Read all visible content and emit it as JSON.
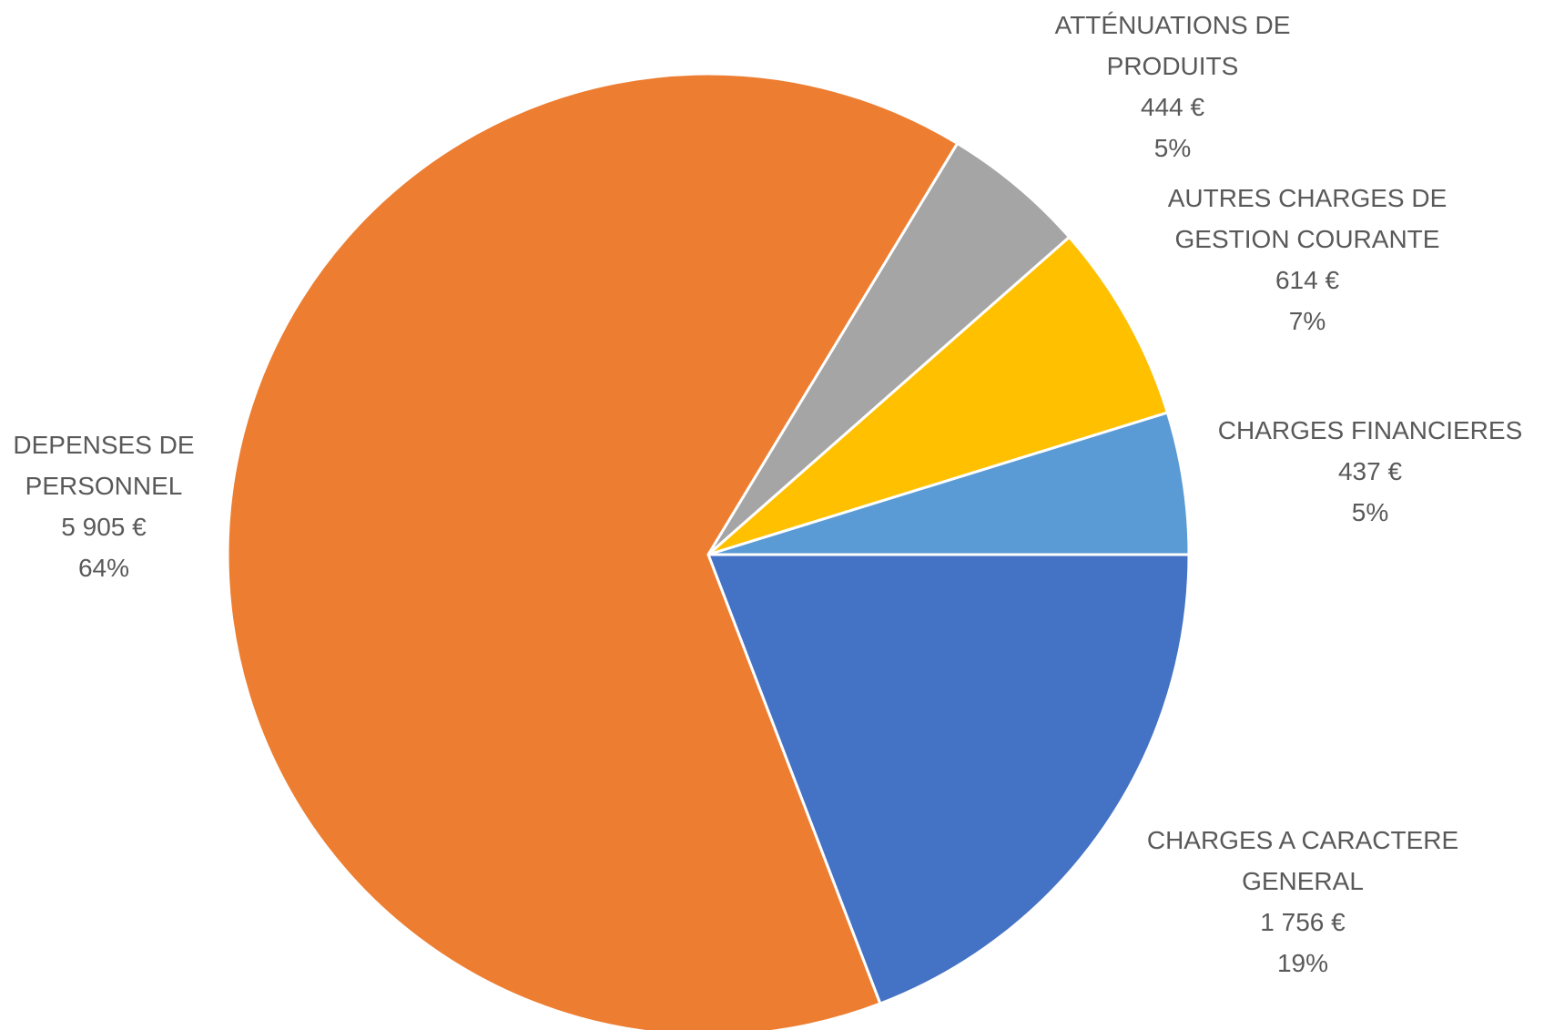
{
  "chart_data": {
    "type": "pie",
    "categories": [
      "CHARGES A CARACTERE GENERAL",
      "DEPENSES DE PERSONNEL",
      "ATTÉNUATIONS DE PRODUITS",
      "AUTRES CHARGES DE GESTION COURANTE",
      "CHARGES FINANCIERES"
    ],
    "values": [
      1756,
      5905,
      444,
      614,
      437
    ],
    "value_labels": [
      "1 756 €",
      "5 905 €",
      "444 €",
      "614 €",
      "437 €"
    ],
    "percentages": [
      19,
      64,
      5,
      7,
      5
    ],
    "percentage_labels": [
      "19%",
      "64%",
      "5%",
      "7%",
      "5%"
    ],
    "colors": [
      "#4472c4",
      "#ed7d31",
      "#a5a5a5",
      "#ffc000",
      "#5b9bd5"
    ]
  }
}
